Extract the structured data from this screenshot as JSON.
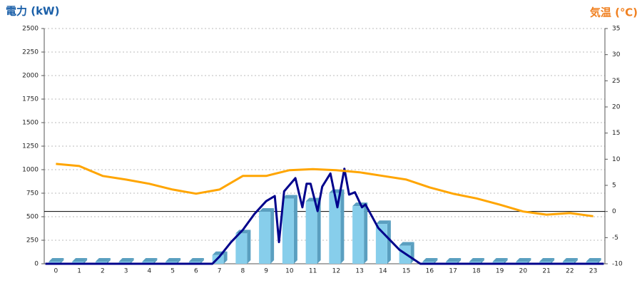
{
  "chart_data": {
    "type": "combo",
    "y_title": "電力 (kW)",
    "y2_title": "気温 (℃)",
    "categories": [
      "0",
      "1",
      "2",
      "3",
      "4",
      "5",
      "6",
      "7",
      "8",
      "9",
      "10",
      "11",
      "12",
      "13",
      "14",
      "15",
      "16",
      "17",
      "18",
      "19",
      "20",
      "21",
      "22",
      "23"
    ],
    "ylim": [
      0,
      2500
    ],
    "yticks": [
      0,
      250,
      500,
      750,
      1000,
      1250,
      1500,
      1750,
      2000,
      2250,
      2500
    ],
    "y2lim": [
      -10,
      35
    ],
    "y2ticks": [
      -10,
      -5,
      0,
      5,
      10,
      15,
      20,
      25,
      30,
      35
    ],
    "grid": true,
    "reference_line": {
      "axis": "y2",
      "value": 0,
      "color": "#000000"
    },
    "series": [
      {
        "type": "bar",
        "color": "#87ceeb",
        "side_color": "#5a9fc0",
        "values": [
          0,
          0,
          0,
          0,
          0,
          0,
          0,
          70,
          300,
          530,
          670,
          640,
          730,
          590,
          400,
          170,
          0,
          0,
          0,
          0,
          0,
          0,
          0,
          0
        ]
      },
      {
        "type": "line",
        "color": "#00008b",
        "x": [
          -0.45,
          6.7,
          7.0,
          7.5,
          8.0,
          8.5,
          9.0,
          9.37,
          9.55,
          9.77,
          10.25,
          10.55,
          10.73,
          10.9,
          11.2,
          11.4,
          11.75,
          12.05,
          12.35,
          12.55,
          12.8,
          13.1,
          13.25,
          13.8,
          14.7,
          15.6,
          23.45
        ],
        "values": [
          0,
          0,
          75,
          230,
          360,
          530,
          665,
          720,
          230,
          770,
          910,
          600,
          850,
          850,
          560,
          820,
          960,
          600,
          1010,
          735,
          760,
          600,
          630,
          380,
          150,
          0,
          0
        ]
      },
      {
        "type": "line",
        "axis": "y2",
        "color": "#ffa500",
        "values": [
          9.1,
          8.7,
          6.8,
          6.1,
          5.3,
          4.2,
          3.4,
          4.2,
          6.8,
          6.8,
          7.9,
          8.1,
          7.9,
          7.5,
          6.8,
          6.1,
          4.6,
          3.4,
          2.5,
          1.3,
          0,
          -0.6,
          -0.3,
          -0.9
        ]
      }
    ]
  }
}
